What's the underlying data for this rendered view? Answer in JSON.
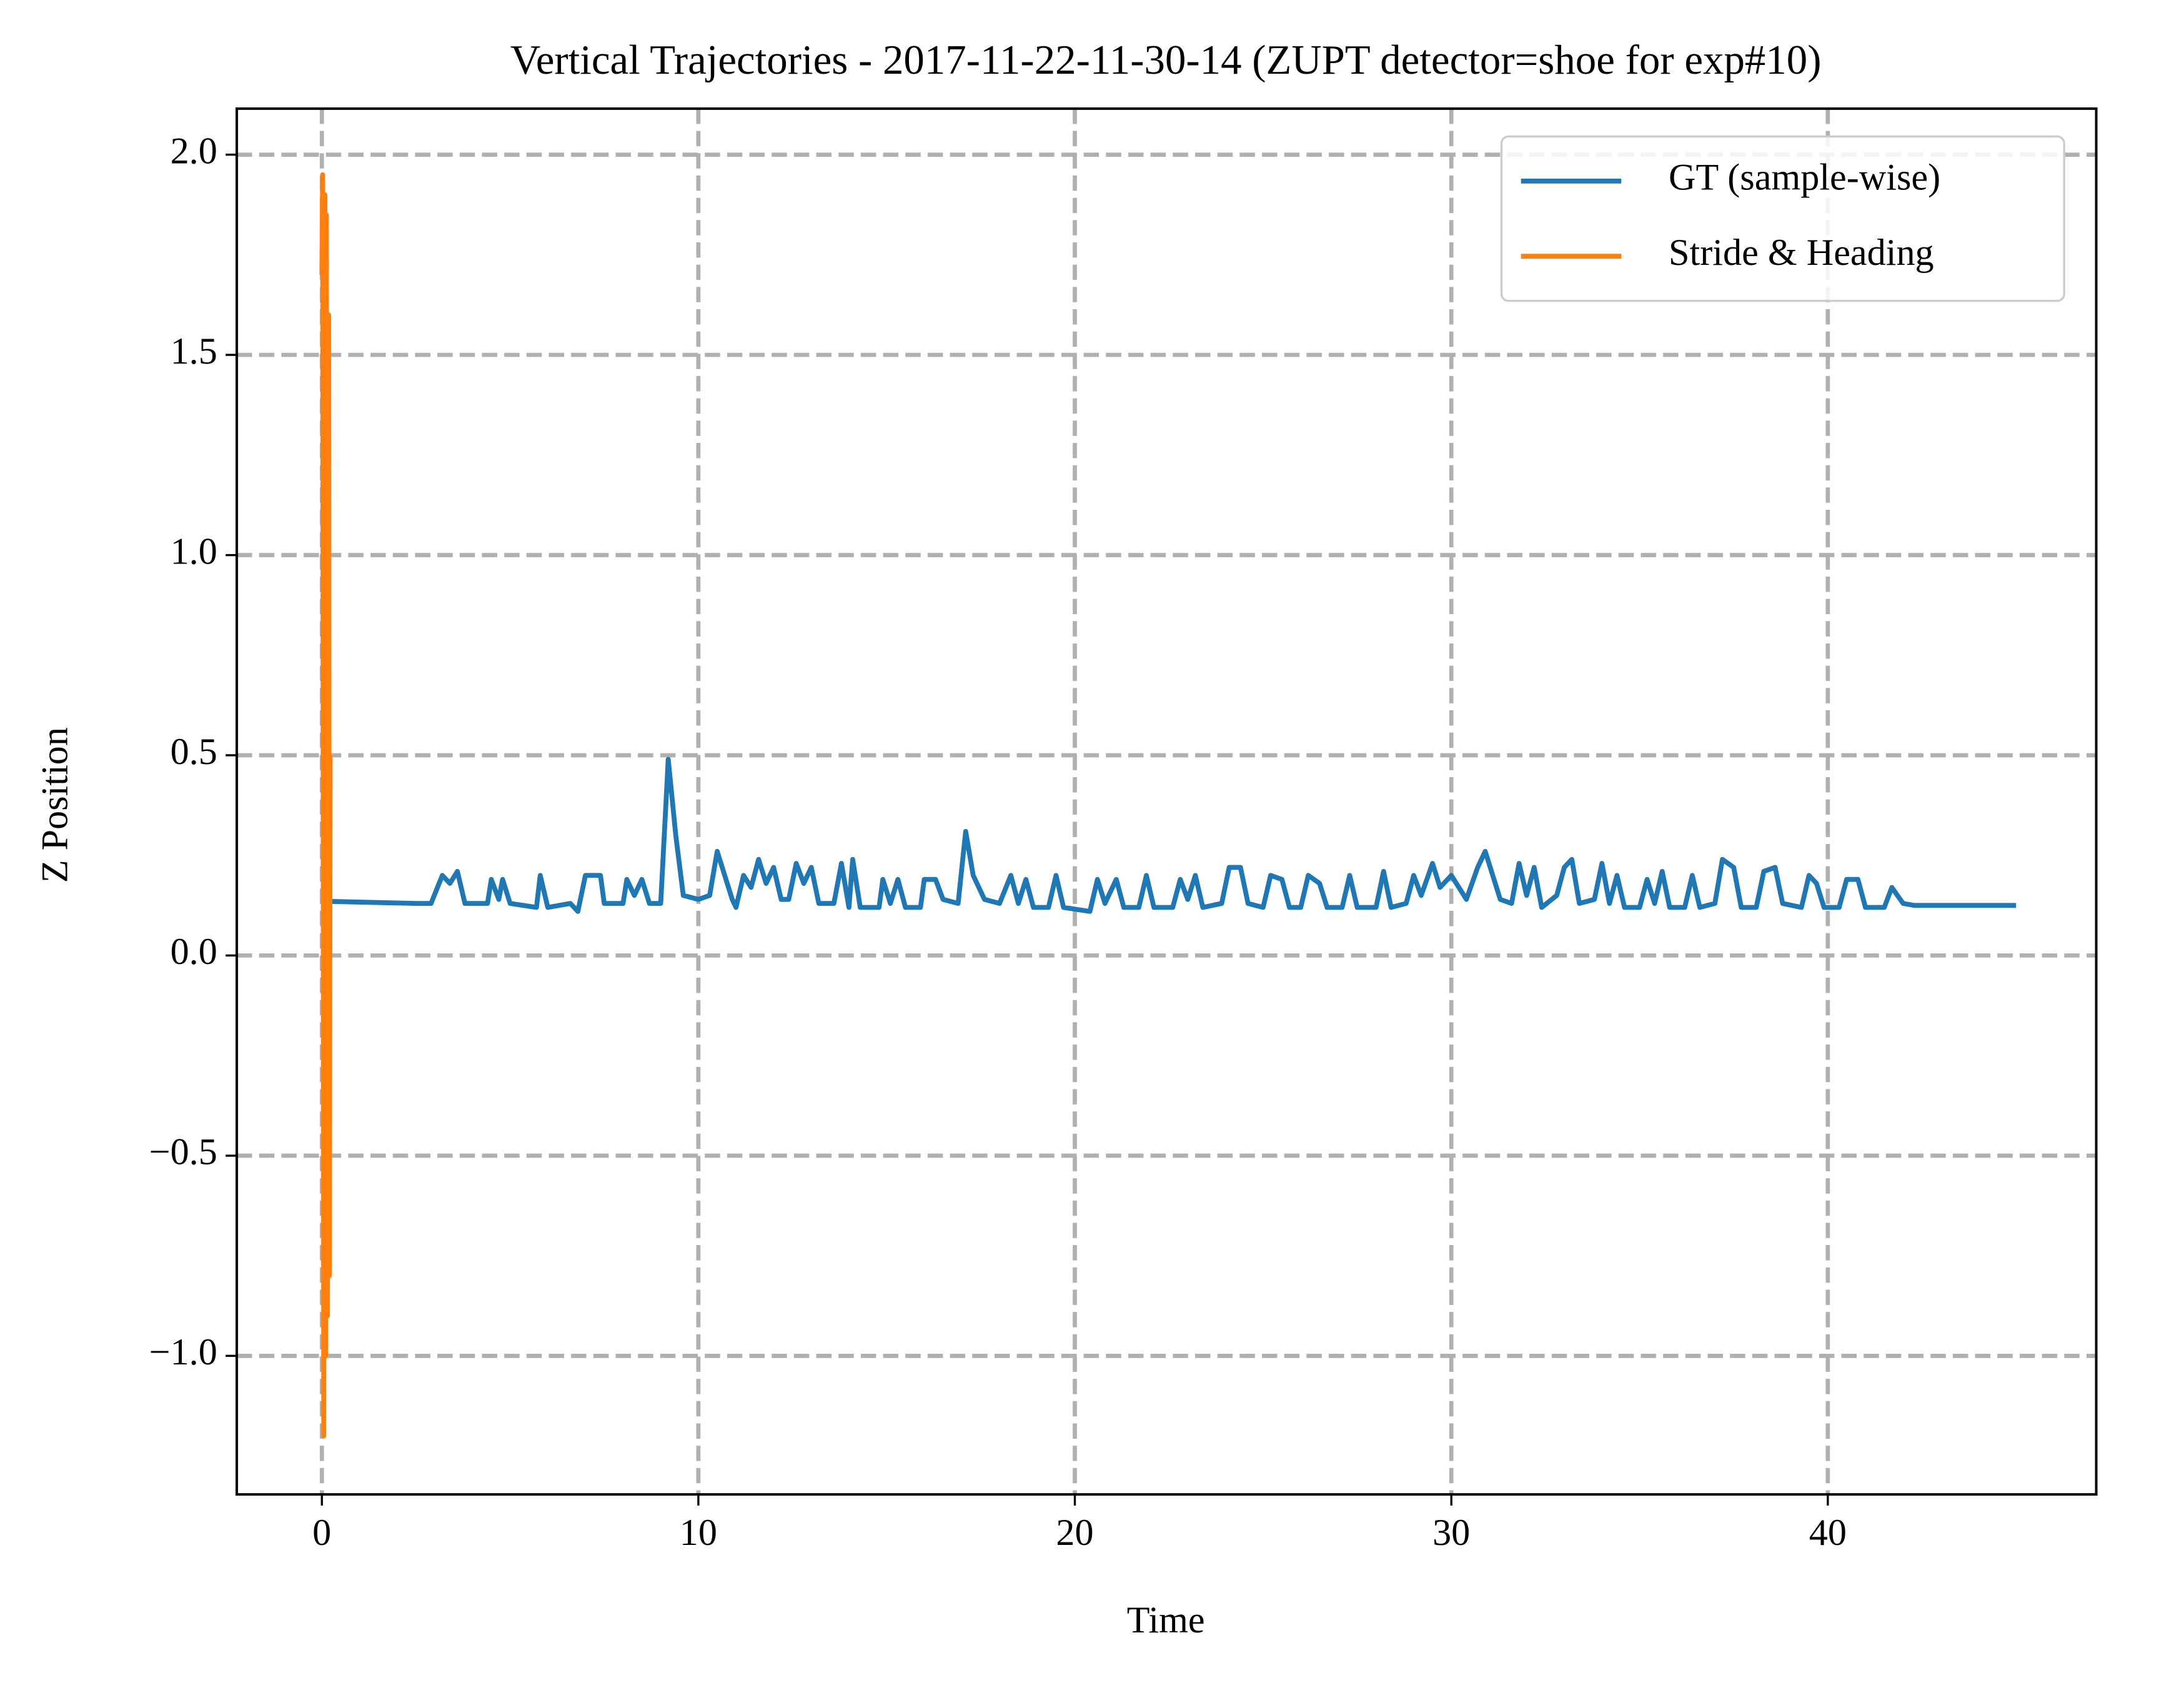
{
  "chart_data": {
    "type": "line",
    "title": "Vertical Trajectories - 2017-11-22-11-30-14 (ZUPT detector=shoe for exp#10)",
    "xlabel": "Time",
    "ylabel": "Z Position",
    "xlim": [
      -2.26,
      47.13
    ],
    "ylim": [
      -1.346,
      2.115
    ],
    "xticks": [
      0,
      10,
      20,
      30,
      40
    ],
    "yticks": [
      {
        "value": -1,
        "label": "−1.0"
      },
      {
        "value": -0.5,
        "label": "−0.5"
      },
      {
        "value": 0,
        "label": "0.0"
      },
      {
        "value": 0.5,
        "label": "0.5"
      },
      {
        "value": 1,
        "label": "1.0"
      },
      {
        "value": 1.5,
        "label": "1.5"
      },
      {
        "value": 2,
        "label": "2.0"
      }
    ],
    "grid": true,
    "legend": "upper right",
    "series": [
      {
        "name": "GT (sample-wise)",
        "color": "#1f77b4",
        "x": [
          0.25,
          2.5,
          2.9,
          3.2,
          3.4,
          3.6,
          3.8,
          4.4,
          4.5,
          4.7,
          4.8,
          5.0,
          5.7,
          5.8,
          6.0,
          6.6,
          6.8,
          7.0,
          7.4,
          7.5,
          8.0,
          8.1,
          8.3,
          8.5,
          8.7,
          9.0,
          9.2,
          9.4,
          9.6,
          10.0,
          10.3,
          10.5,
          10.7,
          10.9,
          11.0,
          11.2,
          11.4,
          11.6,
          11.8,
          12.0,
          12.2,
          12.4,
          12.6,
          12.8,
          13.0,
          13.2,
          13.6,
          13.8,
          14.0,
          14.1,
          14.3,
          14.8,
          14.9,
          15.1,
          15.3,
          15.5,
          15.9,
          16.0,
          16.3,
          16.5,
          16.9,
          17.1,
          17.3,
          17.6,
          18.0,
          18.3,
          18.5,
          18.7,
          18.9,
          19.3,
          19.5,
          19.7,
          20.4,
          20.6,
          20.8,
          21.1,
          21.3,
          21.7,
          21.9,
          22.1,
          22.6,
          22.8,
          23.0,
          23.2,
          23.4,
          23.9,
          24.1,
          24.4,
          24.6,
          25.0,
          25.2,
          25.5,
          25.7,
          26.0,
          26.2,
          26.5,
          26.7,
          27.1,
          27.3,
          27.5,
          28.0,
          28.2,
          28.4,
          28.8,
          29.0,
          29.2,
          29.5,
          29.7,
          30.0,
          30.2,
          30.4,
          30.7,
          30.9,
          31.1,
          31.3,
          31.6,
          31.8,
          32.0,
          32.2,
          32.4,
          32.8,
          33.0,
          33.2,
          33.4,
          33.8,
          34.0,
          34.2,
          34.4,
          34.6,
          35.0,
          35.2,
          35.4,
          35.6,
          35.8,
          36.2,
          36.4,
          36.6,
          37.0,
          37.2,
          37.5,
          37.7,
          38.1,
          38.3,
          38.6,
          38.8,
          39.3,
          39.5,
          39.7,
          39.9,
          40.3,
          40.5,
          40.8,
          41.0,
          41.5,
          41.7,
          42.0,
          42.3,
          45.0
        ],
        "values": [
          0.135,
          0.13,
          0.13,
          0.2,
          0.18,
          0.21,
          0.13,
          0.13,
          0.19,
          0.14,
          0.19,
          0.13,
          0.12,
          0.2,
          0.12,
          0.13,
          0.11,
          0.2,
          0.2,
          0.13,
          0.13,
          0.19,
          0.15,
          0.19,
          0.13,
          0.13,
          0.49,
          0.3,
          0.15,
          0.14,
          0.15,
          0.26,
          0.2,
          0.14,
          0.12,
          0.2,
          0.17,
          0.24,
          0.18,
          0.22,
          0.14,
          0.14,
          0.23,
          0.18,
          0.22,
          0.13,
          0.13,
          0.23,
          0.12,
          0.24,
          0.12,
          0.12,
          0.19,
          0.13,
          0.19,
          0.12,
          0.12,
          0.19,
          0.19,
          0.14,
          0.13,
          0.31,
          0.2,
          0.14,
          0.13,
          0.2,
          0.13,
          0.19,
          0.12,
          0.12,
          0.2,
          0.12,
          0.11,
          0.19,
          0.13,
          0.19,
          0.12,
          0.12,
          0.2,
          0.12,
          0.12,
          0.19,
          0.14,
          0.2,
          0.12,
          0.13,
          0.22,
          0.22,
          0.13,
          0.12,
          0.2,
          0.19,
          0.12,
          0.12,
          0.2,
          0.18,
          0.12,
          0.12,
          0.2,
          0.12,
          0.12,
          0.21,
          0.12,
          0.13,
          0.2,
          0.15,
          0.23,
          0.17,
          0.2,
          0.17,
          0.14,
          0.22,
          0.26,
          0.2,
          0.14,
          0.13,
          0.23,
          0.15,
          0.22,
          0.12,
          0.15,
          0.22,
          0.24,
          0.13,
          0.14,
          0.23,
          0.13,
          0.2,
          0.12,
          0.12,
          0.19,
          0.13,
          0.21,
          0.12,
          0.12,
          0.2,
          0.12,
          0.13,
          0.24,
          0.22,
          0.12,
          0.12,
          0.21,
          0.22,
          0.13,
          0.12,
          0.2,
          0.18,
          0.12,
          0.12,
          0.19,
          0.19,
          0.12,
          0.12,
          0.17,
          0.13,
          0.125,
          0.125
        ]
      },
      {
        "name": "Stride & Heading",
        "color": "#ff7f0e",
        "x": [
          0.0,
          0.02,
          0.05,
          0.08,
          0.1,
          0.12,
          0.15,
          0.18,
          0.2,
          0.22
        ],
        "values": [
          1.7,
          1.95,
          -1.2,
          1.9,
          -1.0,
          1.85,
          -0.9,
          1.6,
          -0.8,
          0.5
        ]
      }
    ]
  }
}
